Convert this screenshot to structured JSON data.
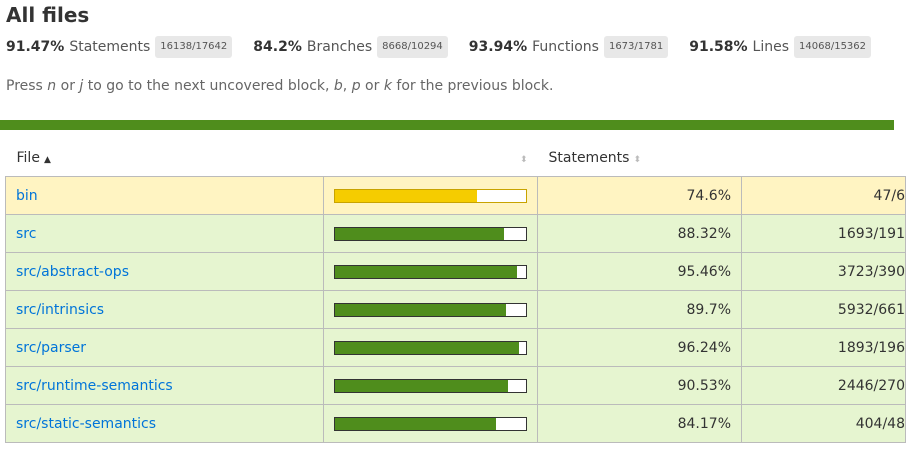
{
  "title": "All files",
  "summary": [
    {
      "pct": "91.47%",
      "label": "Statements",
      "fraction": "16138/17642"
    },
    {
      "pct": "84.2%",
      "label": "Branches",
      "fraction": "8668/10294"
    },
    {
      "pct": "93.94%",
      "label": "Functions",
      "fraction": "1673/1781"
    },
    {
      "pct": "91.58%",
      "label": "Lines",
      "fraction": "14068/15362"
    }
  ],
  "hint": {
    "t1": "Press ",
    "k1": "n",
    "t2": " or ",
    "k2": "j",
    "t3": " to go to the next uncovered block, ",
    "k3": "b",
    "t4": ", ",
    "k4": "p",
    "t5": " or ",
    "k5": "k",
    "t6": " for the previous block."
  },
  "colors": {
    "high": "#4f8d1c",
    "low": "#f5cc00",
    "link": "#0074d9"
  },
  "table": {
    "headers": {
      "file": "File",
      "statements": "Statements"
    },
    "sort_icons": {
      "file": "▲",
      "bar": "⬍",
      "statements": "⬍"
    },
    "rows": [
      {
        "file": "bin",
        "pct": "74.6%",
        "abs": "47/6",
        "level": "low",
        "coverage": 0.746
      },
      {
        "file": "src",
        "pct": "88.32%",
        "abs": "1693/191",
        "level": "high",
        "coverage": 0.8832
      },
      {
        "file": "src/abstract-ops",
        "pct": "95.46%",
        "abs": "3723/390",
        "level": "high",
        "coverage": 0.9546
      },
      {
        "file": "src/intrinsics",
        "pct": "89.7%",
        "abs": "5932/661",
        "level": "high",
        "coverage": 0.897
      },
      {
        "file": "src/parser",
        "pct": "96.24%",
        "abs": "1893/196",
        "level": "high",
        "coverage": 0.9624
      },
      {
        "file": "src/runtime-semantics",
        "pct": "90.53%",
        "abs": "2446/270",
        "level": "high",
        "coverage": 0.9053
      },
      {
        "file": "src/static-semantics",
        "pct": "84.17%",
        "abs": "404/48",
        "level": "high",
        "coverage": 0.8417
      }
    ]
  }
}
